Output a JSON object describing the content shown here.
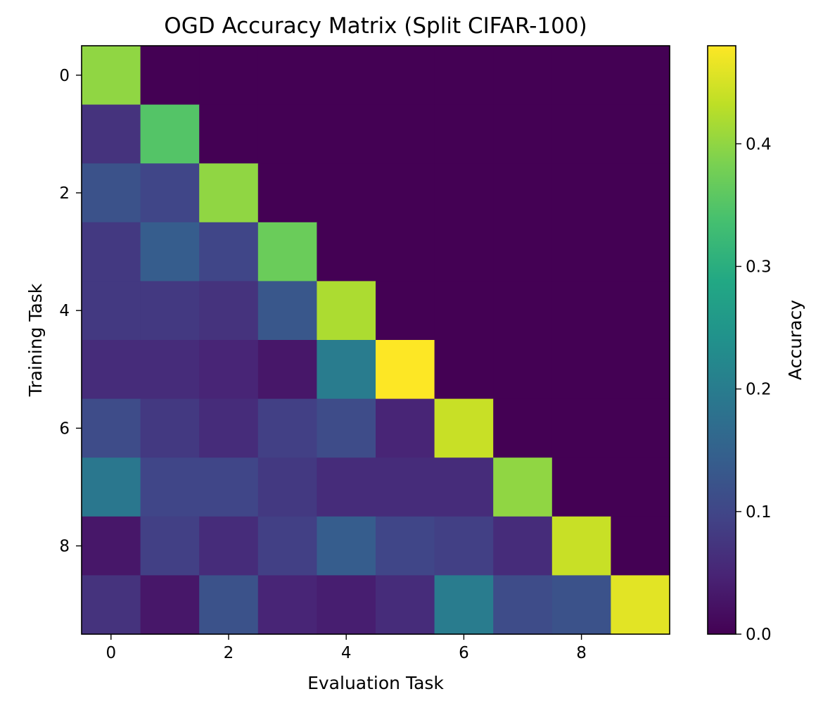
{
  "chart_data": {
    "type": "heatmap",
    "title": "OGD Accuracy Matrix (Split CIFAR-100)",
    "xlabel": "Evaluation Task",
    "ylabel": "Training Task",
    "x": [
      0,
      1,
      2,
      3,
      4,
      5,
      6,
      7,
      8,
      9
    ],
    "y": [
      0,
      1,
      2,
      3,
      4,
      5,
      6,
      7,
      8,
      9
    ],
    "xticks": [
      0,
      2,
      4,
      6,
      8
    ],
    "yticks": [
      0,
      2,
      4,
      6,
      8
    ],
    "colormap": "viridis",
    "colorbar": {
      "label": "Accuracy",
      "vmin": 0.0,
      "vmax": 0.48,
      "ticks": [
        0.0,
        0.1,
        0.2,
        0.3,
        0.4
      ],
      "tick_labels": [
        "0.0",
        "0.1",
        "0.2",
        "0.3",
        "0.4"
      ]
    },
    "values": [
      [
        0.4,
        0.0,
        0.0,
        0.0,
        0.0,
        0.0,
        0.0,
        0.0,
        0.0,
        0.0
      ],
      [
        0.07,
        0.35,
        0.0,
        0.0,
        0.0,
        0.0,
        0.0,
        0.0,
        0.0,
        0.0
      ],
      [
        0.12,
        0.1,
        0.4,
        0.0,
        0.0,
        0.0,
        0.0,
        0.0,
        0.0,
        0.0
      ],
      [
        0.08,
        0.14,
        0.1,
        0.37,
        0.0,
        0.0,
        0.0,
        0.0,
        0.0,
        0.0
      ],
      [
        0.08,
        0.08,
        0.07,
        0.13,
        0.42,
        0.0,
        0.0,
        0.0,
        0.0,
        0.0
      ],
      [
        0.06,
        0.06,
        0.05,
        0.03,
        0.2,
        0.48,
        0.0,
        0.0,
        0.0,
        0.0
      ],
      [
        0.11,
        0.08,
        0.06,
        0.09,
        0.11,
        0.05,
        0.44,
        0.0,
        0.0,
        0.0
      ],
      [
        0.19,
        0.1,
        0.1,
        0.08,
        0.06,
        0.06,
        0.06,
        0.4,
        0.0,
        0.0
      ],
      [
        0.03,
        0.09,
        0.06,
        0.09,
        0.14,
        0.1,
        0.09,
        0.06,
        0.44,
        0.0
      ],
      [
        0.07,
        0.03,
        0.12,
        0.05,
        0.04,
        0.06,
        0.2,
        0.11,
        0.12,
        0.46
      ]
    ]
  }
}
